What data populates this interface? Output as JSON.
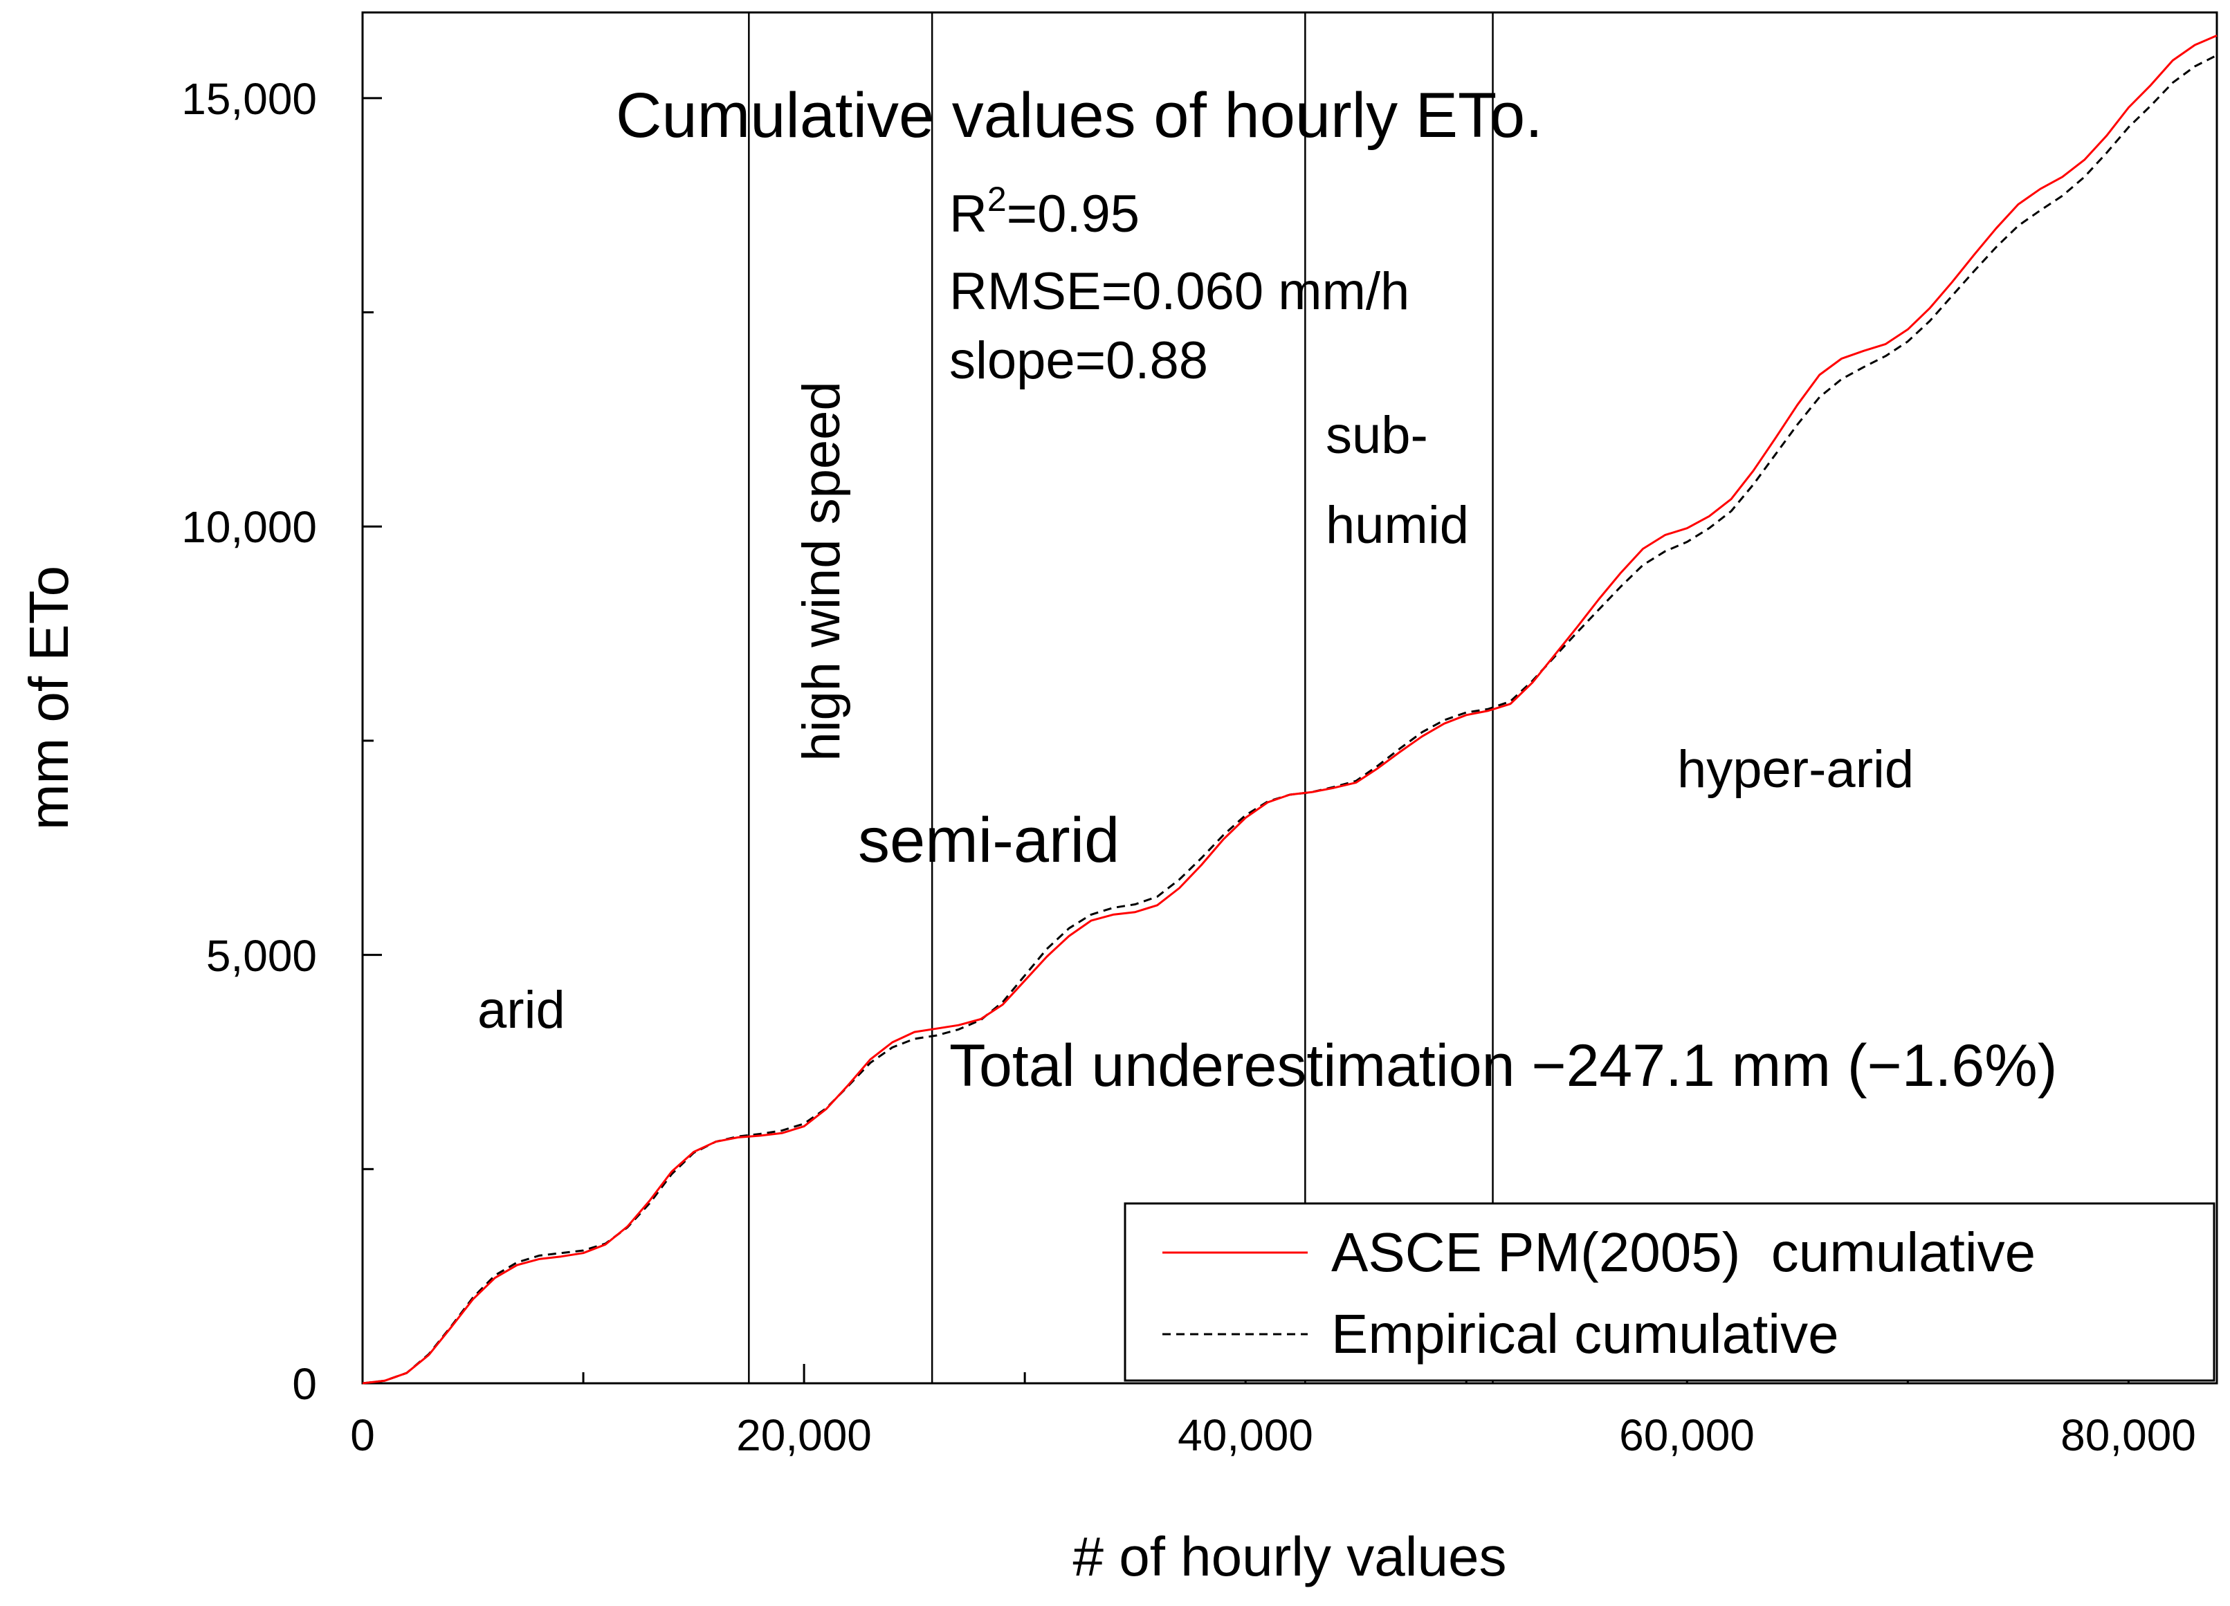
{
  "chart_data": {
    "type": "line",
    "title": "Cumulative values of hourly ETo.",
    "xlabel": "# of hourly values",
    "ylabel": "mm of ETo",
    "xlim": [
      0,
      84000
    ],
    "ylim": [
      0,
      16000
    ],
    "grid": false,
    "x_ticks": [
      {
        "value": 0,
        "label": "0"
      },
      {
        "value": 20000,
        "label": "20,000"
      },
      {
        "value": 40000,
        "label": "40,000"
      },
      {
        "value": 60000,
        "label": "60,000"
      },
      {
        "value": 80000,
        "label": "80,000"
      }
    ],
    "x_minor_ticks": [
      10000,
      30000,
      50000,
      70000
    ],
    "y_ticks": [
      {
        "value": 0,
        "label": "0"
      },
      {
        "value": 5000,
        "label": "5,000"
      },
      {
        "value": 10000,
        "label": "10,000"
      },
      {
        "value": 15000,
        "label": "15,000"
      }
    ],
    "y_minor_ticks": [
      2500,
      7500,
      12500
    ],
    "vertical_lines": [
      17500,
      25800,
      42700,
      51200
    ],
    "stats": {
      "r2_prefix": "R",
      "r2_sup": "2",
      "r2_rest": "=0.95",
      "rmse": "RMSE=0.060 mm/h",
      "slope": "slope=0.88"
    },
    "annotations": {
      "total": "Total underestimation −247.1 mm (−1.6%)"
    },
    "regions": {
      "arid": "arid",
      "high_wind": "high wind speed",
      "semi_arid": "semi-arid",
      "sub_humid_1": "sub-",
      "sub_humid_2": "humid",
      "hyper_arid": "hyper-arid"
    },
    "legend": {
      "position": "bottom-right",
      "entries": [
        {
          "name": "ASCE PM(2005)  cumulative",
          "color": "#ff0000",
          "style": "solid"
        },
        {
          "name": "Empirical cumulative",
          "color": "#000000",
          "style": "dashed"
        }
      ]
    },
    "series": [
      {
        "name": "ASCE PM(2005)  cumulative",
        "color": "#ff0000",
        "style": "solid",
        "x": [
          0,
          1000,
          2000,
          3000,
          4000,
          5000,
          6000,
          7000,
          8000,
          9000,
          10000,
          11000,
          12000,
          13000,
          14000,
          15000,
          16000,
          17000,
          18000,
          19000,
          20000,
          21000,
          22000,
          23000,
          24000,
          25000,
          26000,
          27000,
          28000,
          29000,
          30000,
          31000,
          32000,
          33000,
          34000,
          35000,
          36000,
          37000,
          38000,
          39000,
          40000,
          41000,
          42000,
          43000,
          44000,
          45000,
          46000,
          47000,
          48000,
          49000,
          50000,
          51000,
          52000,
          53000,
          54000,
          55000,
          56000,
          57000,
          58000,
          59000,
          60000,
          61000,
          62000,
          63000,
          64000,
          65000,
          66000,
          67000,
          68000,
          69000,
          70000,
          71000,
          72000,
          73000,
          74000,
          75000,
          76000,
          77000,
          78000,
          79000,
          80000,
          81000,
          82000,
          83000,
          84000
        ],
        "y": [
          0,
          30,
          120,
          330,
          650,
          980,
          1230,
          1380,
          1450,
          1480,
          1520,
          1620,
          1830,
          2130,
          2470,
          2700,
          2820,
          2870,
          2890,
          2920,
          3000,
          3200,
          3480,
          3780,
          3980,
          4100,
          4140,
          4180,
          4250,
          4420,
          4700,
          4980,
          5220,
          5400,
          5470,
          5500,
          5580,
          5780,
          6050,
          6350,
          6600,
          6780,
          6870,
          6900,
          6950,
          7010,
          7180,
          7370,
          7550,
          7700,
          7800,
          7850,
          7930,
          8180,
          8500,
          8820,
          9150,
          9460,
          9740,
          9900,
          9980,
          10120,
          10320,
          10650,
          11030,
          11420,
          11770,
          11960,
          12050,
          12130,
          12300,
          12550,
          12850,
          13170,
          13480,
          13760,
          13940,
          14080,
          14280,
          14560,
          14890,
          15150,
          15440,
          15620,
          15730
        ]
      },
      {
        "name": "Empirical cumulative",
        "color": "#000000",
        "style": "dashed",
        "x": [
          0,
          1000,
          2000,
          3000,
          4000,
          5000,
          6000,
          7000,
          8000,
          9000,
          10000,
          11000,
          12000,
          13000,
          14000,
          15000,
          16000,
          17000,
          18000,
          19000,
          20000,
          21000,
          22000,
          23000,
          24000,
          25000,
          26000,
          27000,
          28000,
          29000,
          30000,
          31000,
          32000,
          33000,
          34000,
          35000,
          36000,
          37000,
          38000,
          39000,
          40000,
          41000,
          42000,
          43000,
          44000,
          45000,
          46000,
          47000,
          48000,
          49000,
          50000,
          51000,
          52000,
          53000,
          54000,
          55000,
          56000,
          57000,
          58000,
          59000,
          60000,
          61000,
          62000,
          63000,
          64000,
          65000,
          66000,
          67000,
          68000,
          69000,
          70000,
          71000,
          72000,
          73000,
          74000,
          75000,
          76000,
          77000,
          78000,
          79000,
          80000,
          81000,
          82000,
          83000,
          84000
        ],
        "y": [
          0,
          30,
          120,
          340,
          660,
          1000,
          1260,
          1410,
          1490,
          1520,
          1550,
          1630,
          1820,
          2100,
          2440,
          2690,
          2820,
          2880,
          2910,
          2950,
          3030,
          3210,
          3470,
          3740,
          3920,
          4020,
          4060,
          4130,
          4240,
          4450,
          4760,
          5070,
          5310,
          5470,
          5550,
          5590,
          5680,
          5880,
          6130,
          6400,
          6630,
          6790,
          6870,
          6900,
          6960,
          7030,
          7210,
          7410,
          7600,
          7740,
          7830,
          7870,
          7960,
          8200,
          8480,
          8760,
          9030,
          9300,
          9550,
          9710,
          9820,
          9980,
          10180,
          10490,
          10840,
          11190,
          11510,
          11720,
          11860,
          11990,
          12160,
          12400,
          12690,
          12980,
          13260,
          13510,
          13690,
          13860,
          14080,
          14360,
          14660,
          14910,
          15180,
          15370,
          15500
        ]
      }
    ]
  }
}
